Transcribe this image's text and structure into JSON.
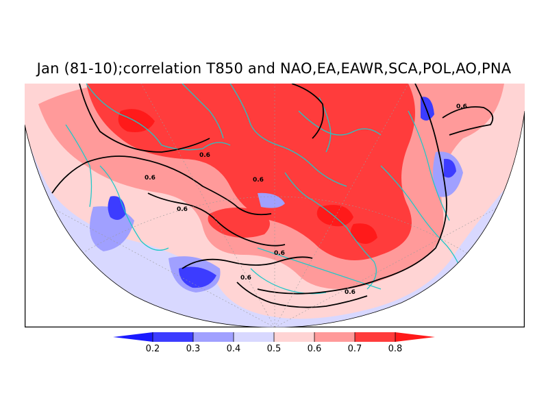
{
  "title": "Jan (81-10);correlation T850 and NAO,EA,EAWR,SCA,POL,AO,PNA",
  "contour_label": "0.6",
  "colorbar": {
    "ticks": [
      "0.2",
      "0.3",
      "0.4",
      "0.5",
      "0.6",
      "0.7",
      "0.8"
    ],
    "colors": [
      "#1a1aff",
      "#3c3cff",
      "#a0a0ff",
      "#d8d8ff",
      "#ffd4d4",
      "#ff9a9a",
      "#ff3c3c",
      "#ff1a1a"
    ]
  },
  "colors": {
    "coastline": "#20c8c8",
    "contour": "#000000",
    "background_fill": "#d8d8ff"
  }
}
